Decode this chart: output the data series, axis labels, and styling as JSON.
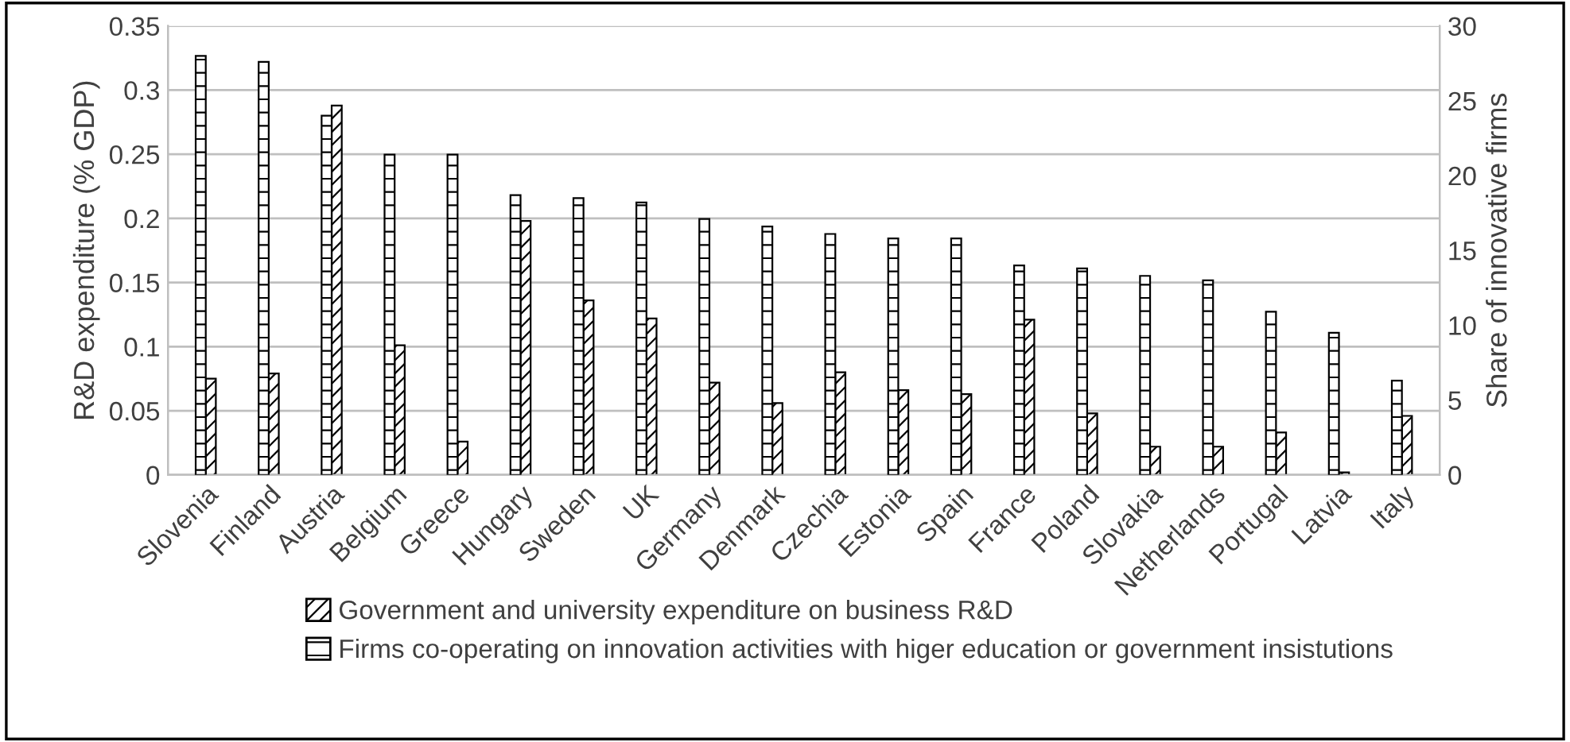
{
  "chart_data": {
    "type": "bar",
    "categories": [
      "Slovenia",
      "Finland",
      "Austria",
      "Belgium",
      "Greece",
      "Hungary",
      "Sweden",
      "UK",
      "Germany",
      "Denmark",
      "Czechia",
      "Estonia",
      "Spain",
      "France",
      "Poland",
      "Slovakia",
      "Netherlands",
      "Portugal",
      "Latvia",
      "Italy"
    ],
    "series": [
      {
        "name": "Firms co-operating on innovation activities with higer education or government insistutions",
        "color": "#000000",
        "axis": "y2",
        "values": [
          28.0,
          27.6,
          24.0,
          21.4,
          21.4,
          18.7,
          18.5,
          18.2,
          17.1,
          16.6,
          16.1,
          15.8,
          15.8,
          14.0,
          13.8,
          13.3,
          13.0,
          10.9,
          9.5,
          6.3
        ]
      },
      {
        "name": "Government and university expenditure on business R&D",
        "color": "#000000",
        "values": [
          0.075,
          0.079,
          0.288,
          0.101,
          0.026,
          0.198,
          0.136,
          0.122,
          0.072,
          0.056,
          0.08,
          0.066,
          0.063,
          0.121,
          0.048,
          0.022,
          0.022,
          0.033,
          0.002,
          0.046
        ]
      }
    ],
    "ylabel": "R&D expenditure (% GDP)",
    "y2label": "Share of innovative firms",
    "ylim": [
      0,
      0.35
    ],
    "yticks": [
      0,
      0.05,
      0.1,
      0.15,
      0.2,
      0.25,
      0.3,
      0.35
    ],
    "y2lim": [
      0,
      30
    ],
    "y2ticks": [
      0,
      5,
      10,
      15,
      20,
      25,
      30
    ],
    "grid": "y",
    "legend": "bottom"
  }
}
